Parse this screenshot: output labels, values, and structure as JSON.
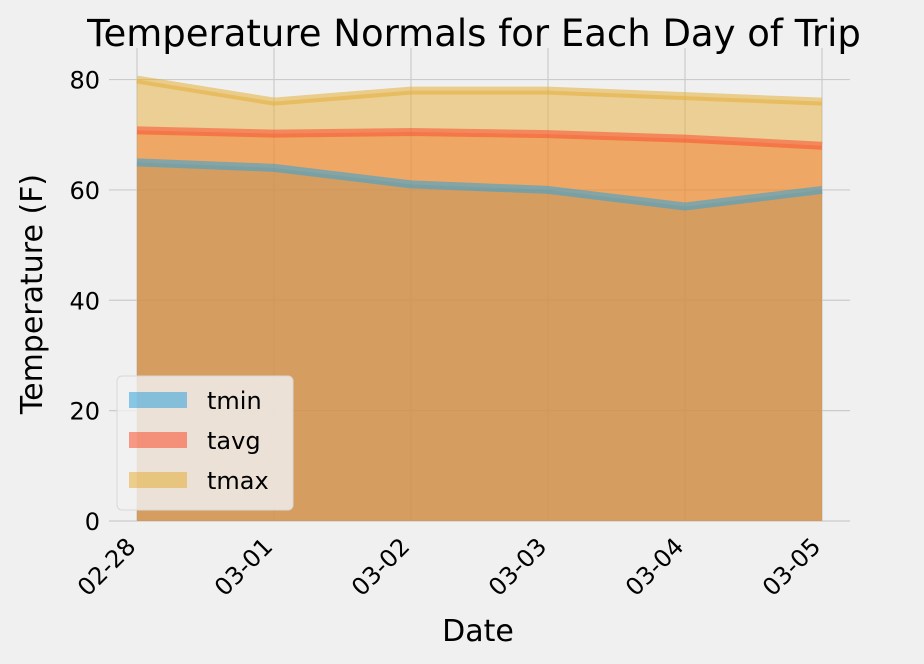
{
  "chart_data": {
    "type": "area",
    "title": "Temperature Normals for Each Day of Trip",
    "xlabel": "Date",
    "ylabel": "Temperature (F)",
    "categories": [
      "02-28",
      "03-01",
      "03-02",
      "03-03",
      "03-04",
      "03-05"
    ],
    "ylim": [
      0,
      83
    ],
    "yticks": [
      0,
      20,
      40,
      60,
      80
    ],
    "stacked": false,
    "grid": true,
    "legend_position": "lower-left",
    "series": [
      {
        "name": "tmin",
        "values": [
          65,
          64,
          61,
          60,
          57,
          60
        ],
        "color": "#30a2da"
      },
      {
        "name": "tavg",
        "values": [
          70.8,
          70.2,
          70.5,
          70.1,
          69.3,
          68.0
        ],
        "color": "#fc4f30"
      },
      {
        "name": "tmax",
        "values": [
          80,
          76,
          78,
          78,
          77,
          76
        ],
        "color": "#e5ae38"
      }
    ],
    "colors": {
      "figure_bg": "#f0f0f0",
      "grid": "#cbcbcb",
      "text": "#000000"
    }
  }
}
